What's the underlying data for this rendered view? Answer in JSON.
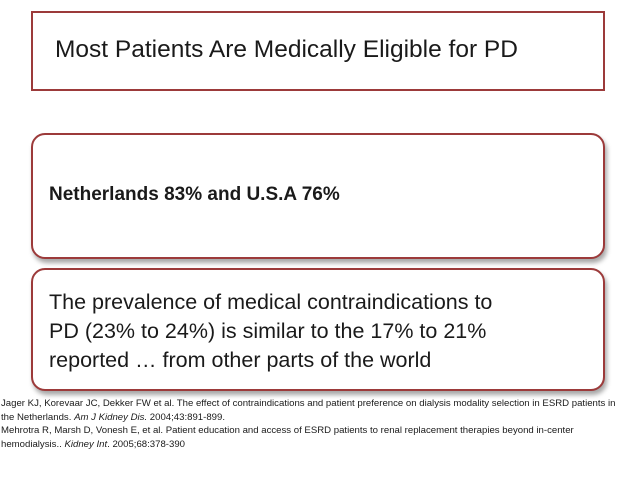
{
  "slide": {
    "title": "Most Patients Are Medically Eligible for PD",
    "point_1": "Netherlands 83% and U.S.A 76%",
    "point_2_lines": [
      "The prevalence of medical contraindications to",
      "PD (23% to 24%) is similar to the 17% to 21%",
      "reported … from other parts of the world"
    ]
  },
  "references": {
    "ref1_line1": "Jager KJ, Korevaar JC, Dekker FW et al. The effect of contraindications and patient preference on dialysis modality selection in ESRD patients in",
    "ref1_line2_pre": "the Netherlands. ",
    "ref1_journal": "Am J Kidney Dis.",
    "ref1_line2_post": " 2004;43:891-899.",
    "ref2_line1": "Mehrotra R, Marsh D, Vonesh E, et al. Patient education and access of ESRD patients to renal replacement therapies beyond in-center",
    "ref2_line2_pre": "hemodialysis.. ",
    "ref2_journal": "Kidney Int",
    "ref2_line2_post": ". 2005;68:378-390"
  },
  "colors": {
    "border": "#9c3a3a",
    "text": "#1a1a1a",
    "background": "#ffffff"
  }
}
